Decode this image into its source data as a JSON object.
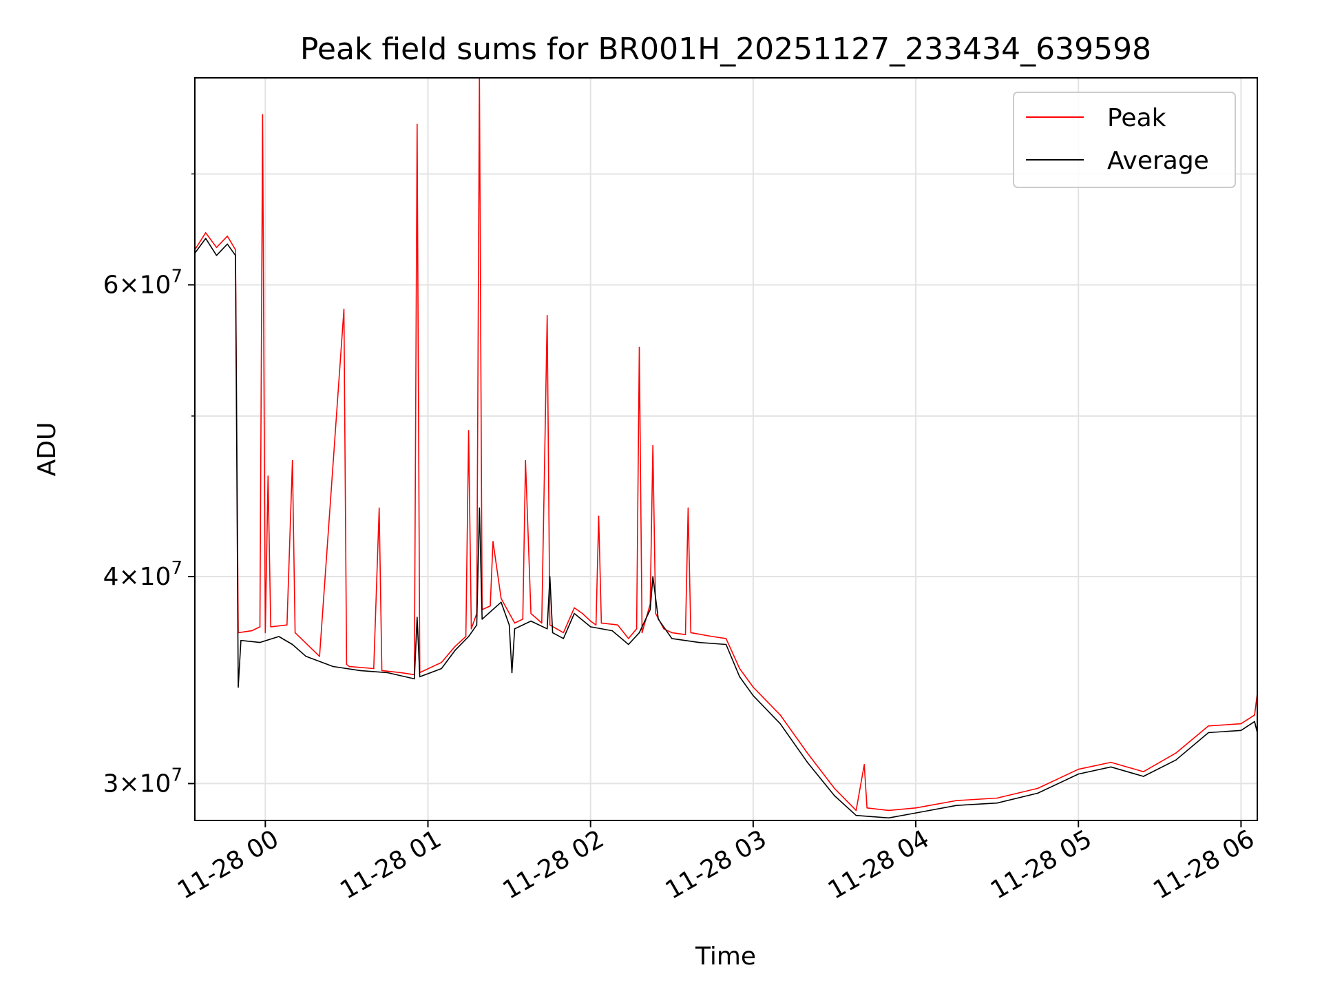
{
  "chart_data": {
    "type": "line",
    "title": "Peak field sums for BR001H_20251127_233434_639598",
    "xlabel": "Time",
    "ylabel": "ADU",
    "yscale": "log",
    "ylim": [
      28500000,
      80000000
    ],
    "xlim": [
      "2025-11-27 23:34",
      "2025-11-28 06:06"
    ],
    "x_ticks": [
      "11-28 00",
      "11-28 01",
      "11-28 02",
      "11-28 03",
      "11-28 04",
      "11-28 05",
      "11-28 06"
    ],
    "y_ticks": [
      {
        "value": 30000000,
        "mantissa": "3",
        "exponent": "7"
      },
      {
        "value": 40000000,
        "mantissa": "4",
        "exponent": "7"
      },
      {
        "value": 60000000,
        "mantissa": "6",
        "exponent": "7"
      }
    ],
    "grid": true,
    "legend_position": "top-right",
    "series": [
      {
        "name": "Peak",
        "color": "#ff0000",
        "points": [
          [
            "2025-11-27 23:34",
            63000000
          ],
          [
            "2025-11-27 23:38",
            64500000
          ],
          [
            "2025-11-27 23:42",
            63200000
          ],
          [
            "2025-11-27 23:46",
            64200000
          ],
          [
            "2025-11-27 23:49",
            63000000
          ],
          [
            "2025-11-27 23:50",
            37000000
          ],
          [
            "2025-11-27 23:55",
            37100000
          ],
          [
            "2025-11-27 23:58",
            37300000
          ],
          [
            "2025-11-27 23:59",
            76000000
          ],
          [
            "2025-11-28 00:00",
            37000000
          ],
          [
            "2025-11-28 00:01",
            46000000
          ],
          [
            "2025-11-28 00:02",
            37300000
          ],
          [
            "2025-11-28 00:08",
            37400000
          ],
          [
            "2025-11-28 00:10",
            47000000
          ],
          [
            "2025-11-28 00:11",
            37000000
          ],
          [
            "2025-11-28 00:20",
            35800000
          ],
          [
            "2025-11-28 00:30",
            35400000
          ],
          [
            "2025-11-28 00:29",
            58000000
          ],
          [
            "2025-11-28 00:31",
            35300000
          ],
          [
            "2025-11-28 00:40",
            35200000
          ],
          [
            "2025-11-28 00:42",
            44000000
          ],
          [
            "2025-11-28 00:43",
            35100000
          ],
          [
            "2025-11-28 00:50",
            35000000
          ],
          [
            "2025-11-28 00:55",
            34900000
          ],
          [
            "2025-11-28 00:56",
            75000000
          ],
          [
            "2025-11-28 00:57",
            35000000
          ],
          [
            "2025-11-28 01:05",
            35500000
          ],
          [
            "2025-11-28 01:10",
            36300000
          ],
          [
            "2025-11-28 01:14",
            36800000
          ],
          [
            "2025-11-28 01:15",
            49000000
          ],
          [
            "2025-11-28 01:16",
            37200000
          ],
          [
            "2025-11-28 01:18",
            38000000
          ],
          [
            "2025-11-28 01:19",
            80000000
          ],
          [
            "2025-11-28 01:20",
            38200000
          ],
          [
            "2025-11-28 01:23",
            38400000
          ],
          [
            "2025-11-28 01:24",
            42000000
          ],
          [
            "2025-11-28 01:27",
            38800000
          ],
          [
            "2025-11-28 01:32",
            37500000
          ],
          [
            "2025-11-28 01:35",
            37700000
          ],
          [
            "2025-11-28 01:36",
            47000000
          ],
          [
            "2025-11-28 01:38",
            38000000
          ],
          [
            "2025-11-28 01:42",
            37500000
          ],
          [
            "2025-11-28 01:44",
            57500000
          ],
          [
            "2025-11-28 01:45",
            37400000
          ],
          [
            "2025-11-28 01:50",
            37000000
          ],
          [
            "2025-11-28 01:54",
            38300000
          ],
          [
            "2025-11-28 01:57",
            38000000
          ],
          [
            "2025-11-28 02:00",
            37600000
          ],
          [
            "2025-11-28 02:02",
            37400000
          ],
          [
            "2025-11-28 02:03",
            43500000
          ],
          [
            "2025-11-28 02:04",
            37500000
          ],
          [
            "2025-11-28 02:10",
            37400000
          ],
          [
            "2025-11-28 02:14",
            36700000
          ],
          [
            "2025-11-28 02:17",
            37200000
          ],
          [
            "2025-11-28 02:18",
            55000000
          ],
          [
            "2025-11-28 02:19",
            37000000
          ],
          [
            "2025-11-28 02:22",
            38500000
          ],
          [
            "2025-11-28 02:23",
            48000000
          ],
          [
            "2025-11-28 02:24",
            38000000
          ],
          [
            "2025-11-28 02:27",
            37200000
          ],
          [
            "2025-11-28 02:30",
            37000000
          ],
          [
            "2025-11-28 02:35",
            36900000
          ],
          [
            "2025-11-28 02:36",
            44000000
          ],
          [
            "2025-11-28 02:37",
            37000000
          ],
          [
            "2025-11-28 02:45",
            36800000
          ],
          [
            "2025-11-28 02:50",
            36700000
          ],
          [
            "2025-11-28 02:55",
            35200000
          ],
          [
            "2025-11-28 03:00",
            34300000
          ],
          [
            "2025-11-28 03:10",
            33000000
          ],
          [
            "2025-11-28 03:20",
            31300000
          ],
          [
            "2025-11-28 03:30",
            29800000
          ],
          [
            "2025-11-28 03:38",
            28900000
          ],
          [
            "2025-11-28 03:41",
            30800000
          ],
          [
            "2025-11-28 03:42",
            29000000
          ],
          [
            "2025-11-28 03:50",
            28900000
          ],
          [
            "2025-11-28 04:00",
            29000000
          ],
          [
            "2025-11-28 04:15",
            29300000
          ],
          [
            "2025-11-28 04:30",
            29400000
          ],
          [
            "2025-11-28 04:45",
            29800000
          ],
          [
            "2025-11-28 05:00",
            30600000
          ],
          [
            "2025-11-28 05:12",
            30900000
          ],
          [
            "2025-11-28 05:24",
            30500000
          ],
          [
            "2025-11-28 05:36",
            31300000
          ],
          [
            "2025-11-28 05:48",
            32500000
          ],
          [
            "2025-11-28 06:00",
            32600000
          ],
          [
            "2025-11-28 06:05",
            33000000
          ],
          [
            "2025-11-28 06:06",
            34000000
          ]
        ]
      },
      {
        "name": "Average",
        "color": "#000000",
        "points": [
          [
            "2025-11-27 23:34",
            62700000
          ],
          [
            "2025-11-27 23:38",
            64000000
          ],
          [
            "2025-11-27 23:42",
            62500000
          ],
          [
            "2025-11-27 23:46",
            63500000
          ],
          [
            "2025-11-27 23:49",
            62500000
          ],
          [
            "2025-11-27 23:50",
            34300000
          ],
          [
            "2025-11-27 23:51",
            36600000
          ],
          [
            "2025-11-27 23:58",
            36500000
          ],
          [
            "2025-11-28 00:05",
            36800000
          ],
          [
            "2025-11-28 00:10",
            36400000
          ],
          [
            "2025-11-28 00:15",
            35800000
          ],
          [
            "2025-11-28 00:25",
            35300000
          ],
          [
            "2025-11-28 00:35",
            35100000
          ],
          [
            "2025-11-28 00:45",
            35000000
          ],
          [
            "2025-11-28 00:55",
            34700000
          ],
          [
            "2025-11-28 00:56",
            37800000
          ],
          [
            "2025-11-28 00:57",
            34800000
          ],
          [
            "2025-11-28 01:05",
            35200000
          ],
          [
            "2025-11-28 01:10",
            36100000
          ],
          [
            "2025-11-28 01:15",
            36800000
          ],
          [
            "2025-11-28 01:18",
            37400000
          ],
          [
            "2025-11-28 01:19",
            44000000
          ],
          [
            "2025-11-28 01:20",
            37700000
          ],
          [
            "2025-11-28 01:27",
            38600000
          ],
          [
            "2025-11-28 01:30",
            37400000
          ],
          [
            "2025-11-28 01:31",
            35000000
          ],
          [
            "2025-11-28 01:32",
            37200000
          ],
          [
            "2025-11-28 01:38",
            37600000
          ],
          [
            "2025-11-28 01:44",
            37200000
          ],
          [
            "2025-11-28 01:45",
            40000000
          ],
          [
            "2025-11-28 01:46",
            37000000
          ],
          [
            "2025-11-28 01:50",
            36700000
          ],
          [
            "2025-11-28 01:54",
            38000000
          ],
          [
            "2025-11-28 02:00",
            37300000
          ],
          [
            "2025-11-28 02:08",
            37100000
          ],
          [
            "2025-11-28 02:14",
            36400000
          ],
          [
            "2025-11-28 02:18",
            37000000
          ],
          [
            "2025-11-28 02:22",
            38200000
          ],
          [
            "2025-11-28 02:23",
            40000000
          ],
          [
            "2025-11-28 02:25",
            37700000
          ],
          [
            "2025-11-28 02:30",
            36700000
          ],
          [
            "2025-11-28 02:40",
            36500000
          ],
          [
            "2025-11-28 02:50",
            36400000
          ],
          [
            "2025-11-28 02:55",
            34800000
          ],
          [
            "2025-11-28 03:00",
            33900000
          ],
          [
            "2025-11-28 03:10",
            32600000
          ],
          [
            "2025-11-28 03:20",
            30900000
          ],
          [
            "2025-11-28 03:30",
            29500000
          ],
          [
            "2025-11-28 03:38",
            28700000
          ],
          [
            "2025-11-28 03:50",
            28600000
          ],
          [
            "2025-11-28 04:00",
            28800000
          ],
          [
            "2025-11-28 04:15",
            29100000
          ],
          [
            "2025-11-28 04:30",
            29200000
          ],
          [
            "2025-11-28 04:45",
            29600000
          ],
          [
            "2025-11-28 05:00",
            30400000
          ],
          [
            "2025-11-28 05:12",
            30700000
          ],
          [
            "2025-11-28 05:24",
            30300000
          ],
          [
            "2025-11-28 05:36",
            31000000
          ],
          [
            "2025-11-28 05:48",
            32200000
          ],
          [
            "2025-11-28 06:00",
            32300000
          ],
          [
            "2025-11-28 06:05",
            32700000
          ],
          [
            "2025-11-28 06:06",
            32200000
          ]
        ]
      }
    ]
  }
}
